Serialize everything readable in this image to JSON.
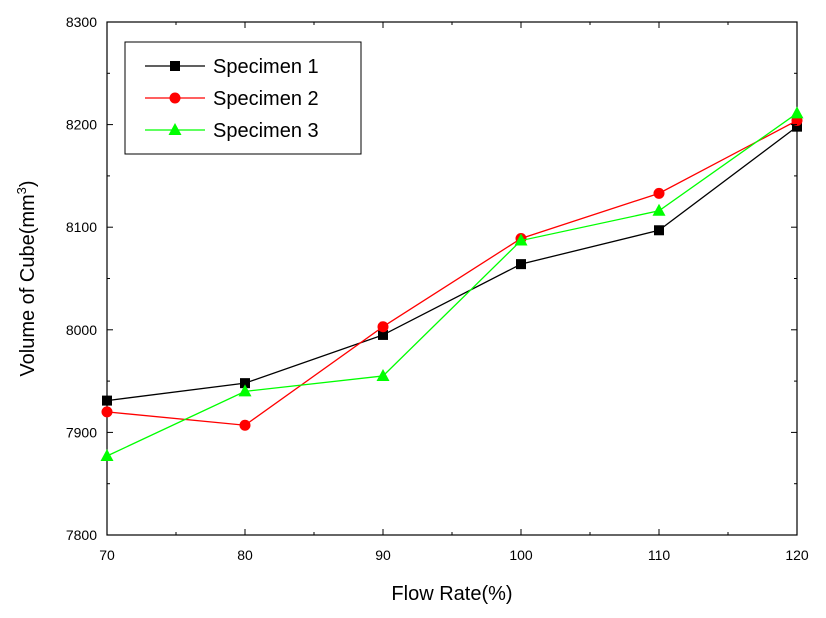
{
  "chart_data": {
    "type": "line",
    "title": "",
    "xlabel": "Flow Rate(%)",
    "ylabel": "Volume of Cube(mm",
    "ylabel_superscript": "3",
    "ylabel_suffix": ")",
    "x": [
      70,
      80,
      90,
      100,
      110,
      120
    ],
    "xlim": [
      70,
      120
    ],
    "ylim": [
      7800,
      8300
    ],
    "x_ticks": [
      "70",
      "80",
      "90",
      "100",
      "110",
      "120"
    ],
    "y_ticks": [
      "7800",
      "7900",
      "8000",
      "8100",
      "8200",
      "8300"
    ],
    "grid": false,
    "legend_position": "top-left",
    "series": [
      {
        "name": "Specimen 1",
        "color": "#000000",
        "marker": "square",
        "values": [
          7931,
          7948,
          7995,
          8064,
          8097,
          8198
        ]
      },
      {
        "name": "Specimen 2",
        "color": "#ff0000",
        "marker": "circle",
        "values": [
          7920,
          7907,
          8003,
          8089,
          8133,
          8204
        ]
      },
      {
        "name": "Specimen 3",
        "color": "#00ff00",
        "marker": "triangle",
        "values": [
          7877,
          7940,
          7955,
          8087,
          8116,
          8211
        ]
      }
    ]
  }
}
